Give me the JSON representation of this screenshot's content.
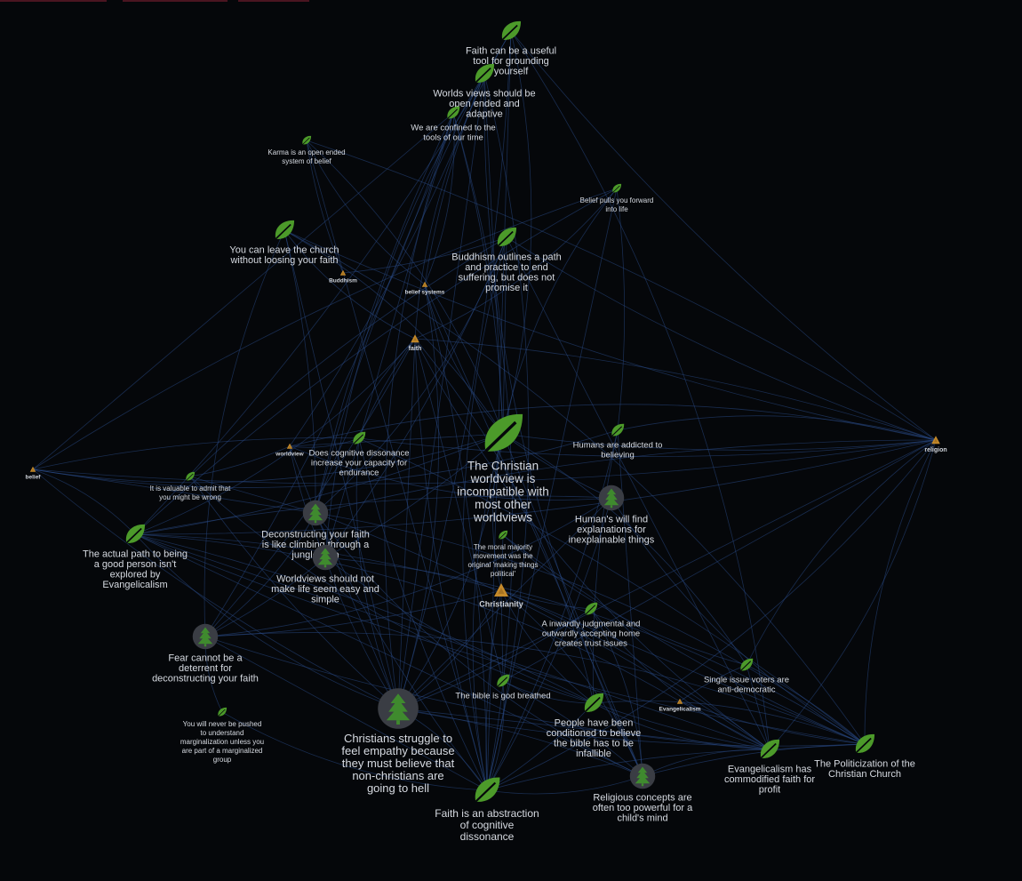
{
  "colors": {
    "background": "#05070a",
    "edge": "#2a4a86",
    "leaf": "#4c9a2a",
    "tree": "#3f8a2e",
    "tree_disc": "#3a3d44",
    "tag": "#c58a2a",
    "label": "#d7dbe2"
  },
  "graph": {
    "nodes": [
      {
        "id": "n1",
        "kind": "leaf",
        "size": "m",
        "lines": [
          "Faith can be a useful",
          "tool for grounding",
          "yourself"
        ]
      },
      {
        "id": "n2",
        "kind": "leaf",
        "size": "m",
        "lines": [
          "Worlds views should be",
          "open ended and",
          "adaptive"
        ]
      },
      {
        "id": "n3",
        "kind": "leaf",
        "size": "s",
        "lines": [
          "We are confined to the",
          "tools of our time"
        ]
      },
      {
        "id": "n4",
        "kind": "leaf",
        "size": "xs",
        "lines": [
          "Karma is an open ended",
          "system of belief"
        ]
      },
      {
        "id": "n5",
        "kind": "leaf",
        "size": "xs",
        "lines": [
          "Belief pulls you forward",
          "into life"
        ]
      },
      {
        "id": "n6",
        "kind": "leaf",
        "size": "m",
        "lines": [
          "You can leave the church",
          "without loosing your faith"
        ]
      },
      {
        "id": "n7",
        "kind": "leaf",
        "size": "m",
        "lines": [
          "Buddhism outlines a path",
          "and practice to end",
          "suffering, but does not",
          "promise it"
        ]
      },
      {
        "id": "t1",
        "kind": "tag",
        "size": "xs",
        "lines": [
          "Buddhism"
        ]
      },
      {
        "id": "t2",
        "kind": "tag",
        "size": "xs",
        "lines": [
          "belief systems"
        ]
      },
      {
        "id": "t3",
        "kind": "tag",
        "size": "s",
        "lines": [
          "faith"
        ]
      },
      {
        "id": "n8",
        "kind": "leaf",
        "size": "xl",
        "lines": [
          "The Christian",
          "worldview is",
          "incompatible with",
          "most other",
          "worldviews"
        ]
      },
      {
        "id": "n9",
        "kind": "leaf",
        "size": "s",
        "lines": [
          "Humans are addicted to",
          "believing"
        ]
      },
      {
        "id": "t4",
        "kind": "tag",
        "size": "s",
        "lines": [
          "religion"
        ]
      },
      {
        "id": "n10",
        "kind": "leaf",
        "size": "s",
        "lines": [
          "Does cognitive dissonance",
          "increase your capacity for",
          "endurance"
        ]
      },
      {
        "id": "t5",
        "kind": "tag",
        "size": "xs",
        "lines": [
          "worldview"
        ]
      },
      {
        "id": "t6",
        "kind": "tag",
        "size": "xs",
        "lines": [
          "belief"
        ]
      },
      {
        "id": "n11",
        "kind": "leaf",
        "size": "xs",
        "lines": [
          "It is valuable to admit that",
          "you might be wrong"
        ]
      },
      {
        "id": "n12",
        "kind": "tree",
        "size": "m",
        "lines": [
          "Deconstructing your faith",
          "is like climbing through a",
          "jungle gym"
        ]
      },
      {
        "id": "n13",
        "kind": "tree",
        "size": "m",
        "lines": [
          "Human's will find",
          "explanations for",
          "inexplainable things"
        ]
      },
      {
        "id": "n14",
        "kind": "leaf",
        "size": "m",
        "lines": [
          "The actual path to being",
          "a good person isn't",
          "explored by",
          "Evangelicalism"
        ]
      },
      {
        "id": "n15",
        "kind": "tree",
        "size": "m",
        "lines": [
          "Worldviews should not",
          "make life seem easy and",
          "simple"
        ]
      },
      {
        "id": "n16",
        "kind": "leaf",
        "size": "xs",
        "lines": [
          "The moral majority",
          "movement was the",
          "original 'making things",
          "political'"
        ]
      },
      {
        "id": "t7",
        "kind": "tag",
        "size": "l",
        "lines": [
          "Christianity"
        ]
      },
      {
        "id": "n17",
        "kind": "leaf",
        "size": "s",
        "lines": [
          "A inwardly judgmental and",
          "outwardly accepting home",
          "creates trust issues"
        ]
      },
      {
        "id": "n18",
        "kind": "tree",
        "size": "m",
        "lines": [
          "Fear cannot be a",
          "deterrent for",
          "deconstructing your faith"
        ]
      },
      {
        "id": "n19",
        "kind": "leaf",
        "size": "s",
        "lines": [
          "Single issue voters are",
          "anti-democratic"
        ]
      },
      {
        "id": "n20",
        "kind": "leaf",
        "size": "s",
        "lines": [
          "The bible is god breathed"
        ]
      },
      {
        "id": "t8",
        "kind": "tag",
        "size": "xs",
        "lines": [
          "Evangelicalism"
        ]
      },
      {
        "id": "n21",
        "kind": "leaf",
        "size": "xs",
        "lines": [
          "You will never be pushed",
          "to understand",
          "marginalization unless you",
          "are part of a marginalized",
          "group"
        ]
      },
      {
        "id": "n22",
        "kind": "tree",
        "size": "l",
        "lines": [
          "Christians struggle to",
          "feel empathy because",
          "they must believe that",
          "non-christians are",
          "going to hell"
        ]
      },
      {
        "id": "n23",
        "kind": "leaf",
        "size": "m",
        "lines": [
          "People have been",
          "conditioned to believe",
          "the bible has to be",
          "infallible"
        ]
      },
      {
        "id": "n24",
        "kind": "leaf",
        "size": "m",
        "lines": [
          "Evangelicalism has",
          "commodified faith for",
          "profit"
        ]
      },
      {
        "id": "n25",
        "kind": "leaf",
        "size": "m",
        "lines": [
          "The Politicization of the",
          "Christian Church"
        ]
      },
      {
        "id": "n26",
        "kind": "tree",
        "size": "m",
        "lines": [
          "Religious concepts are",
          "often too powerful for a",
          "child's mind"
        ]
      },
      {
        "id": "n27",
        "kind": "leaf",
        "size": "l",
        "lines": [
          "Faith is an abstraction",
          "of cognitive",
          "dissonance"
        ]
      }
    ],
    "edges": [
      [
        "n1",
        "n8"
      ],
      [
        "n1",
        "n22"
      ],
      [
        "n1",
        "n27"
      ],
      [
        "n1",
        "t4"
      ],
      [
        "n1",
        "t3"
      ],
      [
        "n1",
        "n24"
      ],
      [
        "n1",
        "n14"
      ],
      [
        "n2",
        "n8"
      ],
      [
        "n2",
        "t2"
      ],
      [
        "n2",
        "n15"
      ],
      [
        "n2",
        "n27"
      ],
      [
        "n2",
        "t5"
      ],
      [
        "n2",
        "n22"
      ],
      [
        "n2",
        "n12"
      ],
      [
        "n2",
        "n26"
      ],
      [
        "n3",
        "t2"
      ],
      [
        "n3",
        "n8"
      ],
      [
        "n3",
        "n15"
      ],
      [
        "n3",
        "n12"
      ],
      [
        "n3",
        "n22"
      ],
      [
        "n3",
        "n27"
      ],
      [
        "n3",
        "n18"
      ],
      [
        "n3",
        "t6"
      ],
      [
        "n4",
        "t1"
      ],
      [
        "n4",
        "t2"
      ],
      [
        "n4",
        "n8"
      ],
      [
        "n4",
        "t4"
      ],
      [
        "n4",
        "n27"
      ],
      [
        "n5",
        "t6"
      ],
      [
        "n5",
        "n8"
      ],
      [
        "n5",
        "t3"
      ],
      [
        "n5",
        "n9"
      ],
      [
        "n5",
        "n27"
      ],
      [
        "n5",
        "n14"
      ],
      [
        "n6",
        "t3"
      ],
      [
        "n6",
        "n8"
      ],
      [
        "n6",
        "n12"
      ],
      [
        "n6",
        "n22"
      ],
      [
        "n6",
        "t4"
      ],
      [
        "n6",
        "n18"
      ],
      [
        "n6",
        "n25"
      ],
      [
        "n7",
        "t1"
      ],
      [
        "n7",
        "n8"
      ],
      [
        "n7",
        "t4"
      ],
      [
        "n7",
        "n27"
      ],
      [
        "n7",
        "n12"
      ],
      [
        "n7",
        "n15"
      ],
      [
        "n7",
        "n24"
      ],
      [
        "n7",
        "n11"
      ],
      [
        "t2",
        "n8"
      ],
      [
        "t2",
        "n22"
      ],
      [
        "t2",
        "n27"
      ],
      [
        "t2",
        "n26"
      ],
      [
        "t3",
        "n10"
      ],
      [
        "t3",
        "n12"
      ],
      [
        "t3",
        "n14"
      ],
      [
        "t3",
        "n18"
      ],
      [
        "t3",
        "n22"
      ],
      [
        "t3",
        "n27"
      ],
      [
        "t3",
        "n24"
      ],
      [
        "t3",
        "n23"
      ],
      [
        "t3",
        "t4"
      ],
      [
        "t3",
        "n20"
      ],
      [
        "n8",
        "t4"
      ],
      [
        "n8",
        "t7"
      ],
      [
        "n8",
        "n22"
      ],
      [
        "n8",
        "n14"
      ],
      [
        "n8",
        "t5"
      ],
      [
        "n8",
        "n13"
      ],
      [
        "n8",
        "n27"
      ],
      [
        "n8",
        "n19"
      ],
      [
        "n8",
        "n15"
      ],
      [
        "n8",
        "n26"
      ],
      [
        "t6",
        "t4"
      ],
      [
        "t6",
        "n8"
      ],
      [
        "t6",
        "n14"
      ],
      [
        "t6",
        "n10"
      ],
      [
        "t6",
        "n12"
      ],
      [
        "t6",
        "n22"
      ],
      [
        "t6",
        "n9"
      ],
      [
        "n9",
        "t4"
      ],
      [
        "n9",
        "n27"
      ],
      [
        "n9",
        "n26"
      ],
      [
        "n9",
        "n23"
      ],
      [
        "t4",
        "n25"
      ],
      [
        "t4",
        "n24"
      ],
      [
        "t4",
        "n14"
      ],
      [
        "t4",
        "n22"
      ],
      [
        "t4",
        "n12"
      ],
      [
        "t4",
        "n19"
      ],
      [
        "t4",
        "n27"
      ],
      [
        "t4",
        "n10"
      ],
      [
        "t4",
        "n20"
      ],
      [
        "n10",
        "n27"
      ],
      [
        "n10",
        "n22"
      ],
      [
        "n10",
        "t5"
      ],
      [
        "n10",
        "n25"
      ],
      [
        "t5",
        "n12"
      ],
      [
        "t5",
        "n15"
      ],
      [
        "t5",
        "n13"
      ],
      [
        "t5",
        "t4"
      ],
      [
        "t5",
        "n11"
      ],
      [
        "n11",
        "n12"
      ],
      [
        "n11",
        "n22"
      ],
      [
        "n11",
        "n23"
      ],
      [
        "n12",
        "n25"
      ],
      [
        "n12",
        "n24"
      ],
      [
        "n12",
        "n22"
      ],
      [
        "n12",
        "n27"
      ],
      [
        "n12",
        "n26"
      ],
      [
        "n12",
        "n18"
      ],
      [
        "n13",
        "n27"
      ],
      [
        "n13",
        "n22"
      ],
      [
        "n13",
        "n14"
      ],
      [
        "n13",
        "n25"
      ],
      [
        "n13",
        "n18"
      ],
      [
        "n14",
        "t7"
      ],
      [
        "n14",
        "n24"
      ],
      [
        "n14",
        "n25"
      ],
      [
        "n14",
        "n22"
      ],
      [
        "n14",
        "t8"
      ],
      [
        "n14",
        "n23"
      ],
      [
        "n14",
        "n26"
      ],
      [
        "n15",
        "n22"
      ],
      [
        "n15",
        "n24"
      ],
      [
        "n15",
        "n25"
      ],
      [
        "n15",
        "n18"
      ],
      [
        "n16",
        "t7"
      ],
      [
        "n16",
        "n25"
      ],
      [
        "n16",
        "n19"
      ],
      [
        "t7",
        "n22"
      ],
      [
        "t7",
        "n24"
      ],
      [
        "t7",
        "n25"
      ],
      [
        "t7",
        "n27"
      ],
      [
        "t7",
        "n23"
      ],
      [
        "t7",
        "n26"
      ],
      [
        "t7",
        "n18"
      ],
      [
        "t7",
        "n20"
      ],
      [
        "t7",
        "n17"
      ],
      [
        "n17",
        "n24"
      ],
      [
        "n17",
        "n26"
      ],
      [
        "n17",
        "n22"
      ],
      [
        "n18",
        "n27"
      ],
      [
        "n18",
        "n24"
      ],
      [
        "n18",
        "n21"
      ],
      [
        "n18",
        "n25"
      ],
      [
        "n19",
        "n25"
      ],
      [
        "n19",
        "n24"
      ],
      [
        "n19",
        "t8"
      ],
      [
        "n20",
        "n23"
      ],
      [
        "n20",
        "n27"
      ],
      [
        "n20",
        "n26"
      ],
      [
        "t8",
        "n24"
      ],
      [
        "t8",
        "n25"
      ],
      [
        "n21",
        "n27"
      ],
      [
        "n22",
        "n27"
      ],
      [
        "n22",
        "n26"
      ],
      [
        "n22",
        "n24"
      ],
      [
        "n22",
        "n25"
      ],
      [
        "n23",
        "n24"
      ],
      [
        "n23",
        "n25"
      ],
      [
        "n23",
        "n27"
      ],
      [
        "n24",
        "n25"
      ],
      [
        "n24",
        "n27"
      ],
      [
        "n24",
        "n26"
      ],
      [
        "n26",
        "n27"
      ],
      [
        "n26",
        "n25"
      ]
    ]
  }
}
